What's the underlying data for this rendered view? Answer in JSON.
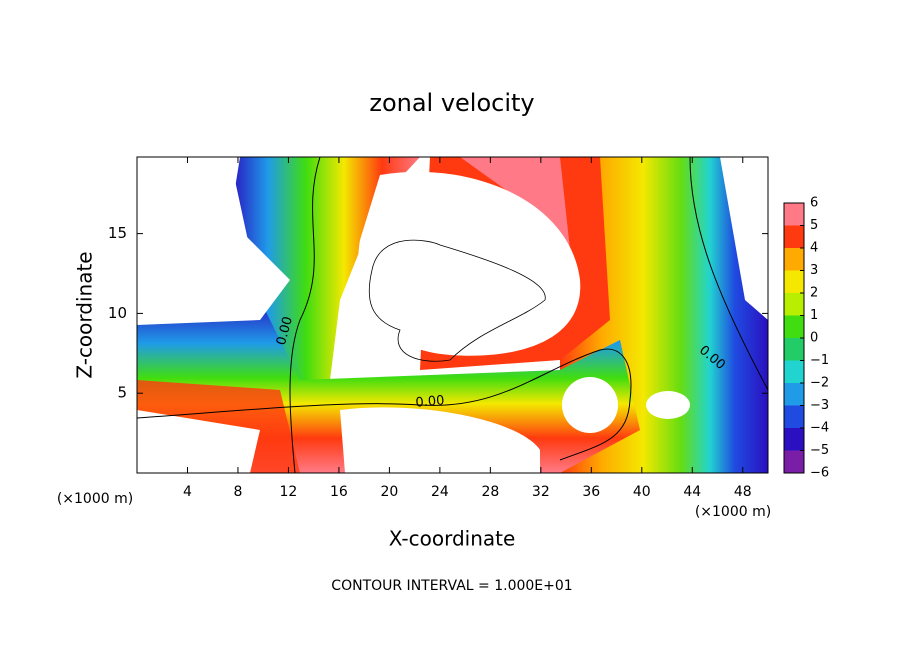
{
  "chart_data": {
    "type": "contour",
    "title": "zonal velocity",
    "x_label": "X-coordinate",
    "y_label": "Z-coordinate",
    "x_unit_labels": [
      "(×1000 m)",
      "(×1000 m)"
    ],
    "xlim": [
      0,
      50
    ],
    "xticks": [
      4,
      8,
      12,
      16,
      20,
      24,
      28,
      32,
      36,
      40,
      44,
      48
    ],
    "ylim": [
      0,
      19.8
    ],
    "yticks": [
      5,
      10,
      15
    ],
    "contour_labels": [
      "0.00",
      "0.00",
      "0.00"
    ],
    "footer": "CONTOUR INTERVAL = 1.000E+01",
    "colorbar": {
      "ticks": [
        {
          "value": -6,
          "label": "−6"
        },
        {
          "value": -5,
          "label": "−5"
        },
        {
          "value": -4,
          "label": "−4"
        },
        {
          "value": -3,
          "label": "−3"
        },
        {
          "value": -2,
          "label": "−2"
        },
        {
          "value": -1,
          "label": "−1"
        },
        0,
        1,
        2,
        3,
        4,
        5,
        6
      ],
      "colors": [
        "#7a1ea8",
        "#2a10c0",
        "#1f4be0",
        "#1f9be8",
        "#22d4d0",
        "#22cc66",
        "#40dd10",
        "#b8ee00",
        "#f4e800",
        "#ffaa00",
        "#ff3a10",
        "#ff7a86"
      ]
    }
  }
}
